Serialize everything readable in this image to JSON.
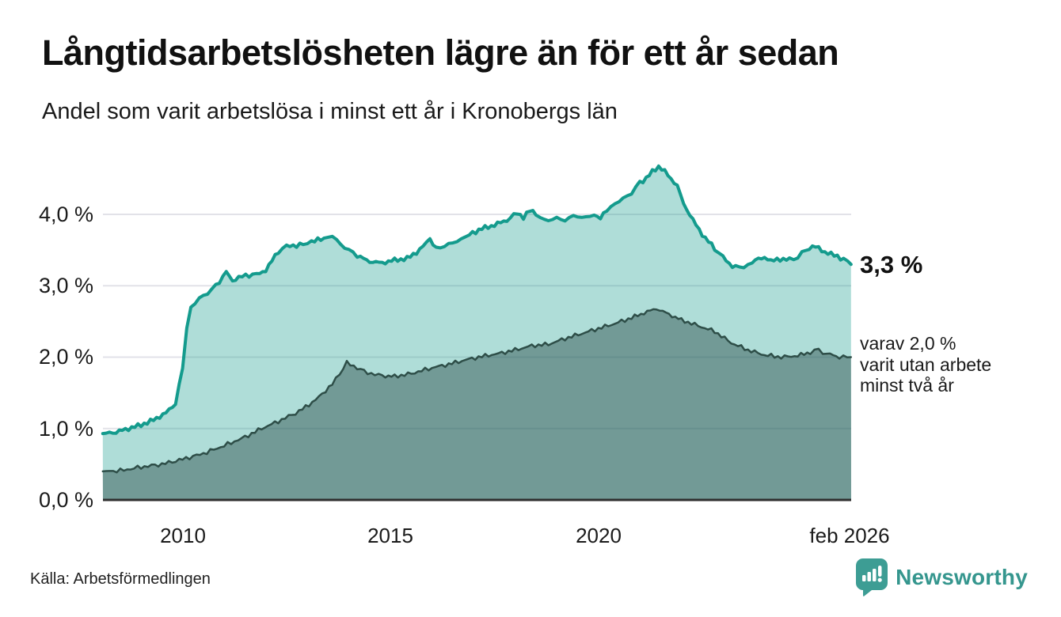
{
  "title": "Långtidsarbetslösheten lägre än för ett år sedan",
  "subtitle": "Andel som varit arbetslösa i minst ett år i Kronobergs län",
  "annotations": {
    "latest_label": "3,3 %",
    "secondary_label": "varav 2,0 %\nvarit utan arbete\nminst två år"
  },
  "footer": {
    "source": "Källa: Arbetsförmedlingen"
  },
  "brand": {
    "name": "Newsworthy",
    "color": "#35968e",
    "icon": "speech-bubble-bar-chart-icon",
    "icon_color": "#3d9d94"
  },
  "chart_data": {
    "type": "area",
    "title": "Långtidsarbetslösheten lägre än för ett år sedan",
    "subtitle": "Andel som varit arbetslösa i minst ett år i Kronobergs län",
    "unit": "%",
    "grid": true,
    "legend_position": "right-annotations",
    "x_axis": {
      "range": [
        2008.083,
        2026.083
      ],
      "ticks": [
        {
          "label": "2010",
          "x": 2010
        },
        {
          "label": "2015",
          "x": 2015
        },
        {
          "label": "2020",
          "x": 2020
        },
        {
          "label": "feb 2026",
          "x": 2026.083
        }
      ]
    },
    "y_axis": {
      "range": [
        0,
        4.8
      ],
      "ticks": [
        {
          "label": "0,0 %",
          "value": 0
        },
        {
          "label": "1,0 %",
          "value": 1
        },
        {
          "label": "2,0 %",
          "value": 2
        },
        {
          "label": "3,0 %",
          "value": 3
        },
        {
          "label": "4,0 %",
          "value": 4
        }
      ]
    },
    "colors": {
      "grid": "#e2e2e8",
      "axis": "#2f2f2f"
    },
    "series": [
      {
        "name": "Andel arbetslösa minst ett år",
        "latest_value": 3.3,
        "line_color": "#149b8d",
        "line_width": 4,
        "fill_color": "rgba(21,154,140,0.34)",
        "points": [
          [
            2008.08,
            0.93
          ],
          [
            2008.4,
            0.95
          ],
          [
            2008.7,
            1.0
          ],
          [
            2009.0,
            1.05
          ],
          [
            2009.3,
            1.12
          ],
          [
            2009.6,
            1.22
          ],
          [
            2009.83,
            1.35
          ],
          [
            2010.0,
            1.85
          ],
          [
            2010.1,
            2.4
          ],
          [
            2010.2,
            2.7
          ],
          [
            2010.4,
            2.82
          ],
          [
            2010.6,
            2.9
          ],
          [
            2010.8,
            3.0
          ],
          [
            2011.05,
            3.19
          ],
          [
            2011.2,
            3.07
          ],
          [
            2011.35,
            3.12
          ],
          [
            2011.6,
            3.15
          ],
          [
            2011.85,
            3.17
          ],
          [
            2012.0,
            3.22
          ],
          [
            2012.15,
            3.35
          ],
          [
            2012.3,
            3.48
          ],
          [
            2012.5,
            3.55
          ],
          [
            2012.9,
            3.58
          ],
          [
            2013.1,
            3.62
          ],
          [
            2013.4,
            3.66
          ],
          [
            2013.6,
            3.7
          ],
          [
            2013.8,
            3.58
          ],
          [
            2014.0,
            3.5
          ],
          [
            2014.2,
            3.42
          ],
          [
            2014.5,
            3.34
          ],
          [
            2014.8,
            3.32
          ],
          [
            2015.1,
            3.36
          ],
          [
            2015.4,
            3.38
          ],
          [
            2015.7,
            3.5
          ],
          [
            2015.95,
            3.66
          ],
          [
            2016.1,
            3.52
          ],
          [
            2016.3,
            3.56
          ],
          [
            2016.5,
            3.6
          ],
          [
            2016.7,
            3.65
          ],
          [
            2016.9,
            3.72
          ],
          [
            2017.2,
            3.8
          ],
          [
            2017.5,
            3.85
          ],
          [
            2017.8,
            3.92
          ],
          [
            2018.05,
            4.02
          ],
          [
            2018.2,
            3.96
          ],
          [
            2018.35,
            4.05
          ],
          [
            2018.5,
            4.02
          ],
          [
            2018.7,
            3.9
          ],
          [
            2018.9,
            3.95
          ],
          [
            2019.1,
            3.92
          ],
          [
            2019.3,
            3.95
          ],
          [
            2019.5,
            3.98
          ],
          [
            2019.7,
            3.95
          ],
          [
            2019.9,
            4.0
          ],
          [
            2020.05,
            3.95
          ],
          [
            2020.2,
            4.05
          ],
          [
            2020.4,
            4.15
          ],
          [
            2020.6,
            4.22
          ],
          [
            2020.8,
            4.3
          ],
          [
            2021.0,
            4.45
          ],
          [
            2021.15,
            4.5
          ],
          [
            2021.3,
            4.6
          ],
          [
            2021.45,
            4.67
          ],
          [
            2021.6,
            4.6
          ],
          [
            2021.75,
            4.5
          ],
          [
            2021.9,
            4.4
          ],
          [
            2022.05,
            4.15
          ],
          [
            2022.2,
            4.0
          ],
          [
            2022.35,
            3.85
          ],
          [
            2022.5,
            3.72
          ],
          [
            2022.65,
            3.62
          ],
          [
            2022.8,
            3.52
          ],
          [
            2023.0,
            3.4
          ],
          [
            2023.15,
            3.3
          ],
          [
            2023.3,
            3.27
          ],
          [
            2023.5,
            3.26
          ],
          [
            2023.7,
            3.32
          ],
          [
            2023.85,
            3.38
          ],
          [
            2024.0,
            3.4
          ],
          [
            2024.15,
            3.34
          ],
          [
            2024.3,
            3.38
          ],
          [
            2024.45,
            3.36
          ],
          [
            2024.6,
            3.37
          ],
          [
            2024.8,
            3.4
          ],
          [
            2025.0,
            3.5
          ],
          [
            2025.15,
            3.55
          ],
          [
            2025.3,
            3.53
          ],
          [
            2025.45,
            3.47
          ],
          [
            2025.6,
            3.44
          ],
          [
            2025.75,
            3.42
          ],
          [
            2025.9,
            3.36
          ],
          [
            2026.0,
            3.34
          ],
          [
            2026.08,
            3.3
          ]
        ]
      },
      {
        "name": "Varav utan arbete minst två år",
        "latest_value": 2.0,
        "line_color": "#2e4e48",
        "line_width": 2.5,
        "fill_color": "rgba(42,77,71,0.46)",
        "points": [
          [
            2008.08,
            0.4
          ],
          [
            2008.5,
            0.41
          ],
          [
            2009.0,
            0.46
          ],
          [
            2009.5,
            0.5
          ],
          [
            2010.0,
            0.57
          ],
          [
            2010.5,
            0.65
          ],
          [
            2011.0,
            0.76
          ],
          [
            2011.5,
            0.88
          ],
          [
            2011.9,
            1.0
          ],
          [
            2012.3,
            1.1
          ],
          [
            2012.8,
            1.24
          ],
          [
            2013.2,
            1.4
          ],
          [
            2013.6,
            1.62
          ],
          [
            2013.95,
            1.92
          ],
          [
            2014.2,
            1.85
          ],
          [
            2014.45,
            1.78
          ],
          [
            2014.8,
            1.74
          ],
          [
            2015.1,
            1.73
          ],
          [
            2015.5,
            1.77
          ],
          [
            2016.0,
            1.85
          ],
          [
            2016.4,
            1.9
          ],
          [
            2016.8,
            1.96
          ],
          [
            2017.2,
            2.01
          ],
          [
            2017.6,
            2.05
          ],
          [
            2018.0,
            2.1
          ],
          [
            2018.4,
            2.16
          ],
          [
            2018.8,
            2.18
          ],
          [
            2019.2,
            2.26
          ],
          [
            2019.6,
            2.33
          ],
          [
            2020.0,
            2.4
          ],
          [
            2020.4,
            2.47
          ],
          [
            2020.8,
            2.55
          ],
          [
            2021.1,
            2.62
          ],
          [
            2021.4,
            2.68
          ],
          [
            2021.7,
            2.6
          ],
          [
            2022.0,
            2.52
          ],
          [
            2022.4,
            2.44
          ],
          [
            2022.8,
            2.36
          ],
          [
            2023.2,
            2.2
          ],
          [
            2023.6,
            2.1
          ],
          [
            2024.0,
            2.03
          ],
          [
            2024.4,
            2.0
          ],
          [
            2024.8,
            2.02
          ],
          [
            2025.1,
            2.07
          ],
          [
            2025.3,
            2.1
          ],
          [
            2025.5,
            2.05
          ],
          [
            2025.8,
            2.0
          ],
          [
            2026.08,
            2.0
          ]
        ]
      }
    ]
  }
}
